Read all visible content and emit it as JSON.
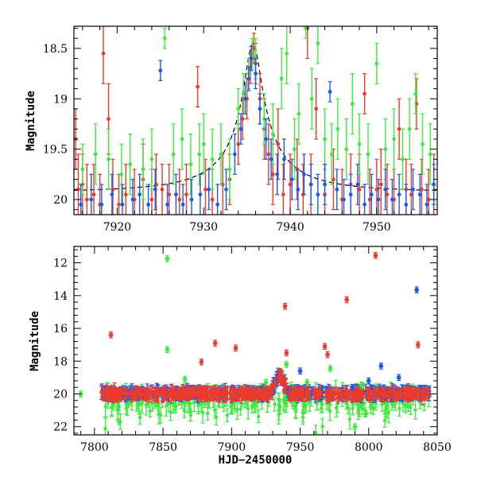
{
  "chart_data": [
    {
      "type": "scatter",
      "panel": "top",
      "xlim": [
        7915,
        7957
      ],
      "ylim": [
        20.15,
        18.28
      ],
      "y_inverted": true,
      "ylabel": "Magnitude",
      "xlabel": "",
      "xticks": [
        7920,
        7930,
        7940,
        7950
      ],
      "yticks": [
        18.5,
        19,
        19.5,
        20
      ],
      "ytick_labels": [
        "18.5",
        "19",
        "19.5",
        "20"
      ],
      "grid": false,
      "legend": "none",
      "colors": {
        "red": "#ee3a2a",
        "green": "#3eea3e",
        "blue": "#1a5ae6",
        "model": "#000000"
      },
      "model_curve": {
        "style": "dashed",
        "baseline": 19.93,
        "peak_time": 7935.7,
        "peak_mag": 18.45,
        "points": [
          [
            7915,
            19.93
          ],
          [
            7920,
            19.93
          ],
          [
            7925,
            19.92
          ],
          [
            7928,
            19.9
          ],
          [
            7930,
            19.86
          ],
          [
            7932,
            19.72
          ],
          [
            7933.5,
            19.42
          ],
          [
            7934.5,
            19.05
          ],
          [
            7935.3,
            18.65
          ],
          [
            7935.7,
            18.46
          ],
          [
            7936.2,
            18.62
          ],
          [
            7937,
            19.08
          ],
          [
            7938,
            19.4
          ],
          [
            7940,
            19.68
          ],
          [
            7943,
            19.82
          ],
          [
            7947,
            19.88
          ],
          [
            7950,
            19.9
          ],
          [
            7957,
            19.92
          ]
        ]
      },
      "series": [
        {
          "color": "red",
          "points": [
            [
              7915.2,
              19.4,
              0.3
            ],
            [
              7915.5,
              19.9,
              0.35
            ],
            [
              7916.0,
              19.85,
              0.3
            ],
            [
              7916.5,
              20.0,
              0.35
            ],
            [
              7917.3,
              19.95,
              0.3
            ],
            [
              7918.0,
              20.05,
              0.3
            ],
            [
              7918.4,
              18.55,
              0.3
            ],
            [
              7919.0,
              19.2,
              0.35
            ],
            [
              7919.5,
              19.9,
              0.3
            ],
            [
              7920.2,
              20.05,
              0.3
            ],
            [
              7921.0,
              19.95,
              0.3
            ],
            [
              7922.0,
              20.0,
              0.3
            ],
            [
              7923.0,
              19.8,
              0.35
            ],
            [
              7924.0,
              20.0,
              0.3
            ],
            [
              7924.5,
              19.85,
              0.3
            ],
            [
              7925.2,
              19.9,
              0.25
            ],
            [
              7926.0,
              19.95,
              0.3
            ],
            [
              7927.2,
              20.0,
              0.3
            ],
            [
              7928.0,
              19.95,
              0.3
            ],
            [
              7929.3,
              18.88,
              0.2
            ],
            [
              7930.2,
              19.9,
              0.3
            ],
            [
              7931.0,
              20.0,
              0.3
            ],
            [
              7932.2,
              19.85,
              0.3
            ],
            [
              7933.0,
              19.8,
              0.25
            ],
            [
              7934.0,
              19.45,
              0.2
            ],
            [
              7934.5,
              19.2,
              0.2
            ],
            [
              7935.0,
              19.0,
              0.2
            ],
            [
              7935.4,
              18.7,
              0.15
            ],
            [
              7935.8,
              18.5,
              0.15
            ],
            [
              7936.0,
              18.65,
              0.2
            ],
            [
              7936.5,
              19.0,
              0.25
            ],
            [
              7937.0,
              19.3,
              0.3
            ],
            [
              7937.5,
              19.55,
              0.3
            ],
            [
              7938.0,
              19.75,
              0.3
            ],
            [
              7938.6,
              19.45,
              0.35
            ],
            [
              7939.2,
              19.95,
              0.3
            ],
            [
              7940.0,
              19.85,
              0.3
            ],
            [
              7940.8,
              19.7,
              0.3
            ],
            [
              7941.5,
              19.95,
              0.3
            ],
            [
              7942.0,
              18.3,
              0.3
            ],
            [
              7942.4,
              19.85,
              0.3
            ],
            [
              7943.0,
              19.1,
              0.3
            ],
            [
              7944.0,
              19.95,
              0.3
            ],
            [
              7945.0,
              19.8,
              0.3
            ],
            [
              7946.0,
              20.0,
              0.3
            ],
            [
              7947.0,
              19.85,
              0.3
            ],
            [
              7948.0,
              19.9,
              0.35
            ],
            [
              7948.6,
              18.95,
              0.2
            ],
            [
              7949.2,
              20.0,
              0.3
            ],
            [
              7950.0,
              19.9,
              0.3
            ],
            [
              7950.5,
              19.85,
              0.35
            ],
            [
              7951.2,
              19.95,
              0.3
            ],
            [
              7952.0,
              20.0,
              0.3
            ],
            [
              7952.6,
              19.3,
              0.3
            ],
            [
              7953.4,
              19.9,
              0.3
            ],
            [
              7954.0,
              19.95,
              0.3
            ],
            [
              7954.6,
              19.05,
              0.25
            ],
            [
              7955.2,
              19.9,
              0.3
            ],
            [
              7956.0,
              20.0,
              0.3
            ],
            [
              7956.6,
              19.85,
              0.3
            ]
          ]
        },
        {
          "color": "green",
          "points": [
            [
              7916.0,
              19.7,
              0.25
            ],
            [
              7917.5,
              19.55,
              0.3
            ],
            [
              7919.0,
              19.6,
              0.3
            ],
            [
              7920.5,
              19.75,
              0.3
            ],
            [
              7921.5,
              19.65,
              0.3
            ],
            [
              7923.0,
              19.7,
              0.3
            ],
            [
              7924.0,
              19.6,
              0.3
            ],
            [
              7925.5,
              18.4,
              0.1
            ],
            [
              7926.5,
              19.55,
              0.3
            ],
            [
              7927.5,
              19.4,
              0.3
            ],
            [
              7928.5,
              19.65,
              0.3
            ],
            [
              7929.5,
              19.55,
              0.3
            ],
            [
              7930.0,
              19.45,
              0.3
            ],
            [
              7931.0,
              19.6,
              0.3
            ],
            [
              7932.0,
              19.55,
              0.3
            ],
            [
              7933.0,
              19.7,
              0.3
            ],
            [
              7934.0,
              19.1,
              0.2
            ],
            [
              7934.6,
              18.95,
              0.2
            ],
            [
              7935.2,
              18.75,
              0.15
            ],
            [
              7935.6,
              18.55,
              0.15
            ],
            [
              7936.0,
              18.6,
              0.2
            ],
            [
              7937.0,
              19.2,
              0.25
            ],
            [
              7938.0,
              19.35,
              0.3
            ],
            [
              7939.0,
              18.8,
              0.3
            ],
            [
              7939.6,
              18.55,
              0.3
            ],
            [
              7940.5,
              19.5,
              0.3
            ],
            [
              7941.0,
              19.15,
              0.3
            ],
            [
              7941.8,
              18.3,
              0.1
            ],
            [
              7942.5,
              19.0,
              0.3
            ],
            [
              7943.2,
              18.45,
              0.2
            ],
            [
              7944.0,
              19.4,
              0.3
            ],
            [
              7944.8,
              19.55,
              0.3
            ],
            [
              7945.5,
              19.3,
              0.3
            ],
            [
              7946.5,
              19.5,
              0.3
            ],
            [
              7947.2,
              19.05,
              0.3
            ],
            [
              7948.0,
              19.45,
              0.3
            ],
            [
              7949.0,
              19.55,
              0.3
            ],
            [
              7950.0,
              18.65,
              0.2
            ],
            [
              7951.0,
              19.5,
              0.3
            ],
            [
              7952.0,
              19.4,
              0.3
            ],
            [
              7953.0,
              19.6,
              0.3
            ],
            [
              7953.8,
              19.3,
              0.3
            ],
            [
              7954.5,
              18.95,
              0.2
            ],
            [
              7955.3,
              19.45,
              0.3
            ],
            [
              7956.2,
              19.55,
              0.3
            ]
          ]
        },
        {
          "color": "blue",
          "points": [
            [
              7915.8,
              20.05,
              0.2
            ],
            [
              7917.0,
              20.0,
              0.25
            ],
            [
              7918.2,
              20.05,
              0.2
            ],
            [
              7919.4,
              19.95,
              0.2
            ],
            [
              7920.6,
              20.05,
              0.2
            ],
            [
              7921.8,
              20.0,
              0.2
            ],
            [
              7922.6,
              19.95,
              0.2
            ],
            [
              7923.6,
              20.05,
              0.2
            ],
            [
              7924.4,
              19.9,
              0.2
            ],
            [
              7925.0,
              18.72,
              0.1
            ],
            [
              7925.8,
              20.05,
              0.2
            ],
            [
              7926.8,
              19.95,
              0.2
            ],
            [
              7927.6,
              20.05,
              0.2
            ],
            [
              7928.6,
              20.0,
              0.2
            ],
            [
              7929.6,
              19.95,
              0.2
            ],
            [
              7930.6,
              19.9,
              0.2
            ],
            [
              7931.6,
              20.05,
              0.2
            ],
            [
              7932.6,
              19.9,
              0.2
            ],
            [
              7933.6,
              19.55,
              0.2
            ],
            [
              7934.3,
              19.3,
              0.15
            ],
            [
              7934.8,
              19.0,
              0.15
            ],
            [
              7935.2,
              18.8,
              0.12
            ],
            [
              7935.5,
              18.6,
              0.12
            ],
            [
              7936.0,
              18.75,
              0.15
            ],
            [
              7936.5,
              19.1,
              0.15
            ],
            [
              7937.2,
              19.4,
              0.2
            ],
            [
              7937.8,
              19.6,
              0.2
            ],
            [
              7938.5,
              19.75,
              0.2
            ],
            [
              7939.3,
              19.6,
              0.2
            ],
            [
              7940.2,
              19.8,
              0.2
            ],
            [
              7940.9,
              19.9,
              0.2
            ],
            [
              7941.6,
              19.75,
              0.2
            ],
            [
              7942.4,
              19.85,
              0.2
            ],
            [
              7943.2,
              19.95,
              0.2
            ],
            [
              7944.0,
              19.85,
              0.2
            ],
            [
              7944.6,
              18.93,
              0.1
            ],
            [
              7945.4,
              19.9,
              0.2
            ],
            [
              7946.2,
              20.0,
              0.2
            ],
            [
              7947.0,
              19.95,
              0.2
            ],
            [
              7947.8,
              19.85,
              0.2
            ],
            [
              7948.6,
              20.05,
              0.2
            ],
            [
              7949.4,
              19.95,
              0.2
            ],
            [
              7950.2,
              20.0,
              0.2
            ],
            [
              7951.0,
              19.9,
              0.2
            ],
            [
              7951.8,
              20.0,
              0.2
            ],
            [
              7952.6,
              19.95,
              0.2
            ],
            [
              7953.4,
              20.05,
              0.2
            ],
            [
              7954.2,
              19.9,
              0.2
            ],
            [
              7955.0,
              19.95,
              0.2
            ],
            [
              7955.8,
              20.05,
              0.2
            ],
            [
              7956.6,
              19.85,
              0.2
            ]
          ]
        }
      ]
    },
    {
      "type": "scatter",
      "panel": "bottom",
      "xlim": [
        7785,
        8050
      ],
      "ylim": [
        22.5,
        11.0
      ],
      "y_inverted": true,
      "xlabel": "HJD−2450000",
      "ylabel": "Magnitude",
      "xticks": [
        7800,
        7850,
        7900,
        7950,
        8000,
        8050
      ],
      "yticks": [
        12,
        14,
        16,
        18,
        20,
        22
      ],
      "ytick_labels": [
        "12",
        "14",
        "16",
        "18",
        "20",
        "22"
      ],
      "grid": false,
      "legend": "none",
      "band_ranges": [
        [
          7805,
          8045
        ]
      ],
      "outliers": {
        "red": [
          [
            7812,
            16.4
          ],
          [
            7878,
            18.05
          ],
          [
            7888,
            16.9
          ],
          [
            7903,
            17.2
          ],
          [
            7939,
            14.65
          ],
          [
            7940,
            17.5
          ],
          [
            7968,
            17.1
          ],
          [
            7970,
            17.6
          ],
          [
            7984,
            14.25
          ],
          [
            8005,
            11.55
          ],
          [
            8036,
            17.0
          ]
        ],
        "green": [
          [
            7790,
            20.0
          ],
          [
            7818,
            21.7
          ],
          [
            7853,
            11.75
          ],
          [
            7853,
            17.3
          ],
          [
            7866,
            19.1
          ],
          [
            7925,
            19.3
          ],
          [
            7940,
            18.2
          ],
          [
            7972,
            18.45
          ],
          [
            7990,
            22.0
          ],
          [
            7998,
            21.2
          ],
          [
            7955,
            19.3
          ],
          [
            7995,
            19.5
          ]
        ],
        "blue": [
          [
            7950,
            18.6
          ],
          [
            7988,
            19.6
          ],
          [
            8000,
            19.2
          ],
          [
            8009,
            18.3
          ],
          [
            8022,
            19.0
          ],
          [
            8035,
            13.65
          ]
        ]
      },
      "series": [
        {
          "color": "red",
          "scatter_mean": 20.0,
          "scatter_spread": 0.5
        },
        {
          "color": "green",
          "scatter_mean": 20.3,
          "scatter_spread": 1.6
        },
        {
          "color": "blue",
          "scatter_mean": 19.95,
          "scatter_spread": 0.4
        }
      ]
    }
  ]
}
